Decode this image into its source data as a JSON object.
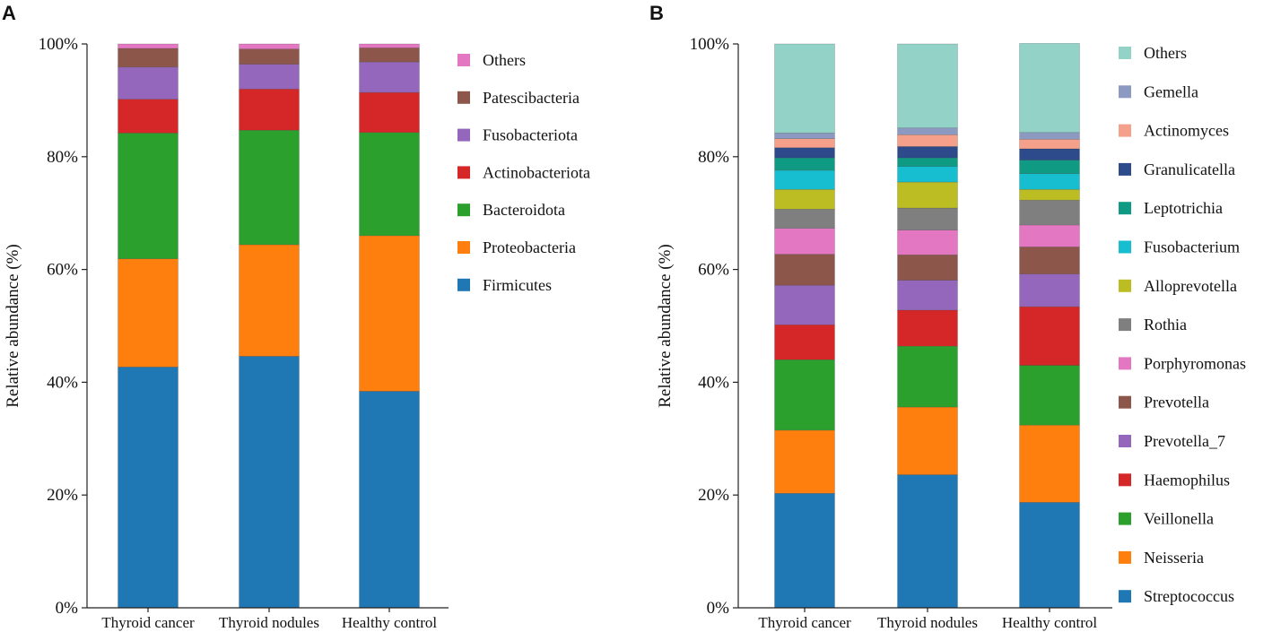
{
  "chart_data": [
    {
      "panel": "A",
      "type": "bar",
      "stacked": true,
      "ylabel": "Relative abundance (%)",
      "ylim": [
        0,
        100
      ],
      "yticks": [
        "0%",
        "20%",
        "40%",
        "60%",
        "80%",
        "100%"
      ],
      "categories": [
        "Thyroid cancer",
        "Thyroid nodules",
        "Healthy control"
      ],
      "legend_position": "right",
      "series": [
        {
          "name": "Firmicutes",
          "color": "#1f77b4",
          "values": [
            42.7,
            44.6,
            38.4
          ]
        },
        {
          "name": "Proteobacteria",
          "color": "#ff7f0e",
          "values": [
            19.2,
            19.8,
            27.6
          ]
        },
        {
          "name": "Bacteroidota",
          "color": "#2ca02c",
          "values": [
            22.3,
            20.3,
            18.3
          ]
        },
        {
          "name": "Actinobacteriota",
          "color": "#d62728",
          "values": [
            6.0,
            7.3,
            7.1
          ]
        },
        {
          "name": "Fusobacteriota",
          "color": "#9467bd",
          "values": [
            5.7,
            4.4,
            5.4
          ]
        },
        {
          "name": "Patescibacteria",
          "color": "#8c564b",
          "values": [
            3.3,
            2.7,
            2.5
          ]
        },
        {
          "name": "Others",
          "color": "#e377c2",
          "values": [
            0.8,
            0.9,
            0.7
          ]
        }
      ]
    },
    {
      "panel": "B",
      "type": "bar",
      "stacked": true,
      "ylabel": "Relative abundance (%)",
      "ylim": [
        0,
        100
      ],
      "yticks": [
        "0%",
        "20%",
        "40%",
        "60%",
        "80%",
        "100%"
      ],
      "categories": [
        "Thyroid cancer",
        "Thyroid nodules",
        "Healthy control"
      ],
      "legend_position": "right",
      "series": [
        {
          "name": "Streptococcus",
          "color": "#1f77b4",
          "values": [
            20.3,
            23.6,
            18.7
          ]
        },
        {
          "name": "Neisseria",
          "color": "#ff7f0e",
          "values": [
            11.2,
            12.0,
            13.7
          ]
        },
        {
          "name": "Veillonella",
          "color": "#2ca02c",
          "values": [
            12.5,
            10.8,
            10.6
          ]
        },
        {
          "name": "Haemophilus",
          "color": "#d62728",
          "values": [
            6.2,
            6.4,
            10.4
          ]
        },
        {
          "name": "Prevotella_7",
          "color": "#9467bd",
          "values": [
            7.0,
            5.3,
            5.8
          ]
        },
        {
          "name": "Prevotella",
          "color": "#8c564b",
          "values": [
            5.5,
            4.5,
            4.8
          ]
        },
        {
          "name": "Porphyromonas",
          "color": "#e377c2",
          "values": [
            4.6,
            4.4,
            3.9
          ]
        },
        {
          "name": "Rothia",
          "color": "#7f7f7f",
          "values": [
            3.4,
            3.9,
            4.4
          ]
        },
        {
          "name": "Alloprevotella",
          "color": "#bcbd22",
          "values": [
            3.5,
            4.6,
            1.9
          ]
        },
        {
          "name": "Fusobacterium",
          "color": "#17becf",
          "values": [
            3.4,
            2.8,
            2.8
          ]
        },
        {
          "name": "Leptotrichia",
          "color": "#0e9a83",
          "values": [
            2.2,
            1.5,
            2.4
          ]
        },
        {
          "name": "Granulicatella",
          "color": "#2d4a8a",
          "values": [
            1.8,
            2.0,
            2.0
          ]
        },
        {
          "name": "Actinomyces",
          "color": "#f4a08a",
          "values": [
            1.6,
            2.1,
            1.7
          ]
        },
        {
          "name": "Gemella",
          "color": "#8c9ac2",
          "values": [
            1.0,
            1.2,
            1.2
          ]
        },
        {
          "name": "Others",
          "color": "#93d2c6",
          "values": [
            15.8,
            14.9,
            15.8
          ]
        }
      ]
    }
  ]
}
